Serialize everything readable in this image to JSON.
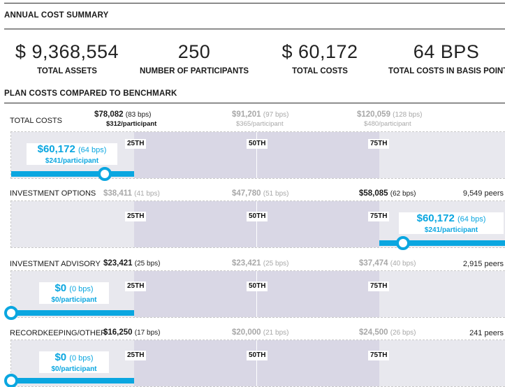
{
  "summary": {
    "title": "ANNUAL COST SUMMARY",
    "stats": [
      {
        "value": "$ 9,368,554",
        "label": "TOTAL ASSETS"
      },
      {
        "value": "250",
        "label": "NUMBER OF PARTICIPANTS"
      },
      {
        "value": "$ 60,172",
        "label": "TOTAL COSTS"
      },
      {
        "value": "64 BPS",
        "label": "TOTAL COSTS IN BASIS POINTS"
      }
    ]
  },
  "benchmark": {
    "title": "PLAN COSTS COMPARED TO BENCHMARK",
    "quartile_labels": [
      "25TH",
      "50TH",
      "75TH"
    ],
    "accent_color": "#0aa6e0",
    "rows": [
      {
        "label": "TOTAL COSTS",
        "p25": {
          "value": "$78,082",
          "bps": "(83 bps)",
          "per": "$312/participant"
        },
        "p50": {
          "value": "$91,201",
          "bps": "(97 bps)",
          "per": "$365/participant"
        },
        "p75": {
          "value": "$120,059",
          "bps": "(128 bps)",
          "per": "$480/participant"
        },
        "peers": "",
        "plan": {
          "value": "$60,172",
          "bps": "(64 bps)",
          "per": "$241/participant"
        }
      },
      {
        "label": "INVESTMENT OPTIONS",
        "p25": {
          "value": "$38,411",
          "bps": "(41 bps)"
        },
        "p50": {
          "value": "$47,780",
          "bps": "(51 bps)"
        },
        "p75": {
          "value": "$58,085",
          "bps": "(62 bps)"
        },
        "peers": "9,549 peers",
        "plan": {
          "value": "$60,172",
          "bps": "(64 bps)",
          "per": "$241/participant"
        }
      },
      {
        "label": "INVESTMENT ADVISORY",
        "p25": {
          "value": "$23,421",
          "bps": "(25 bps)"
        },
        "p50": {
          "value": "$23,421",
          "bps": "(25 bps)"
        },
        "p75": {
          "value": "$37,474",
          "bps": "(40 bps)"
        },
        "peers": "2,915 peers",
        "plan": {
          "value": "$0",
          "bps": "(0 bps)",
          "per": "$0/participant"
        }
      },
      {
        "label": "RECORDKEEPING/OTHER",
        "p25": {
          "value": "$16,250",
          "bps": "(17 bps)"
        },
        "p50": {
          "value": "$20,000",
          "bps": "(21 bps)"
        },
        "p75": {
          "value": "$24,500",
          "bps": "(26 bps)"
        },
        "peers": "241 peers",
        "plan": {
          "value": "$0",
          "bps": "(0 bps)",
          "per": "$0/participant"
        }
      }
    ]
  }
}
